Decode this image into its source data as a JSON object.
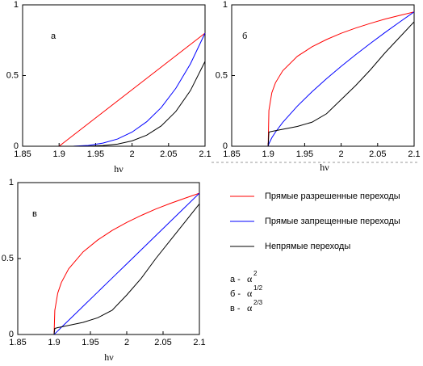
{
  "chart_data": [
    {
      "type": "line",
      "panel_label": "а",
      "x_label": "hν",
      "x": [
        1.9,
        1.901,
        1.905,
        1.91,
        1.92,
        1.94,
        1.96,
        1.98,
        2.0,
        2.02,
        2.04,
        2.06,
        2.08,
        2.1
      ],
      "series": [
        {
          "color": "#ff0000",
          "values": [
            0,
            0.004,
            0.02,
            0.04,
            0.08,
            0.16,
            0.24,
            0.32,
            0.4,
            0.48,
            0.56,
            0.64,
            0.72,
            0.8
          ]
        },
        {
          "color": "#0000ff",
          "values": [
            0,
            0,
            0,
            0,
            0.001,
            0.006,
            0.022,
            0.051,
            0.1,
            0.173,
            0.274,
            0.41,
            0.583,
            0.8
          ]
        },
        {
          "color": "#000000",
          "values": [
            0,
            0,
            0,
            0,
            0,
            0.001,
            0.005,
            0.015,
            0.038,
            0.078,
            0.144,
            0.246,
            0.394,
            0.6
          ]
        }
      ],
      "xlim": [
        1.85,
        2.1
      ],
      "ylim": [
        0,
        1
      ],
      "xticks": [
        1.85,
        1.9,
        1.95,
        2,
        2.05,
        2.1
      ],
      "yticks": [
        0,
        0.5,
        1
      ]
    },
    {
      "type": "line",
      "panel_label": "б",
      "x_label": "hν",
      "x": [
        1.9,
        1.901,
        1.905,
        1.91,
        1.92,
        1.94,
        1.96,
        1.98,
        2.0,
        2.02,
        2.04,
        2.06,
        2.08,
        2.1
      ],
      "series": [
        {
          "color": "#ff0000",
          "values": [
            0,
            0.253,
            0.378,
            0.449,
            0.534,
            0.636,
            0.703,
            0.755,
            0.799,
            0.836,
            0.869,
            0.899,
            0.925,
            0.95
          ]
        },
        {
          "color": "#0000ff",
          "values": [
            0,
            0.018,
            0.06,
            0.1,
            0.169,
            0.284,
            0.385,
            0.478,
            0.565,
            0.648,
            0.727,
            0.804,
            0.878,
            0.95
          ]
        },
        {
          "color": "#000000",
          "values": [
            0,
            0.1,
            0.105,
            0.11,
            0.12,
            0.14,
            0.17,
            0.23,
            0.33,
            0.43,
            0.54,
            0.66,
            0.77,
            0.88
          ]
        }
      ],
      "xlim": [
        1.85,
        2.1
      ],
      "ylim": [
        0,
        1
      ],
      "xticks": [
        1.85,
        1.9,
        1.95,
        2,
        2.05,
        2.1
      ],
      "yticks": [
        0,
        0.5,
        1
      ]
    },
    {
      "type": "line",
      "panel_label": "в",
      "x_label": "hν",
      "x": [
        1.9,
        1.901,
        1.905,
        1.91,
        1.92,
        1.94,
        1.96,
        1.98,
        2.0,
        2.02,
        2.04,
        2.06,
        2.08,
        2.1
      ],
      "series": [
        {
          "name": "Прямые разрешенные переходы",
          "color": "#ff0000",
          "values": [
            0,
            0.159,
            0.272,
            0.342,
            0.432,
            0.544,
            0.622,
            0.685,
            0.738,
            0.784,
            0.826,
            0.863,
            0.897,
            0.93
          ]
        },
        {
          "name": "Прямые запрещенные переходы",
          "color": "#0000ff",
          "values": [
            0,
            0.005,
            0.023,
            0.047,
            0.093,
            0.186,
            0.279,
            0.372,
            0.465,
            0.558,
            0.651,
            0.744,
            0.837,
            0.93
          ]
        },
        {
          "name": "Непрямые переходы",
          "color": "#000000",
          "values": [
            0,
            0.04,
            0.045,
            0.05,
            0.06,
            0.08,
            0.11,
            0.16,
            0.26,
            0.37,
            0.5,
            0.62,
            0.74,
            0.86
          ]
        }
      ],
      "xlim": [
        1.85,
        2.1
      ],
      "ylim": [
        0,
        1
      ],
      "xticks": [
        1.85,
        1.9,
        1.95,
        2,
        2.05,
        2.1
      ],
      "yticks": [
        0,
        0.5,
        1
      ]
    }
  ],
  "notes": [
    {
      "label": "а -",
      "symbol": "α",
      "power": "2"
    },
    {
      "label": "б -",
      "symbol": "α",
      "power": "1/2"
    },
    {
      "label": "в -",
      "symbol": "α",
      "power": "2/3"
    }
  ]
}
